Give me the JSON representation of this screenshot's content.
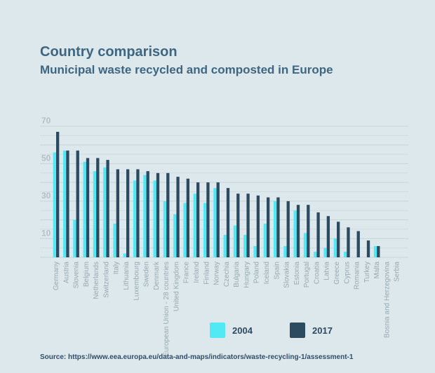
{
  "chart_data": {
    "type": "bar",
    "title": "Country comparison",
    "subtitle": "Municipal waste recycled and composted in Europe",
    "xlabel": "",
    "ylabel": "",
    "ylim": [
      0,
      70
    ],
    "yticks": [
      10,
      30,
      50,
      70
    ],
    "grid": true,
    "legend_position": "bottom",
    "categories": [
      "Germany",
      "Austria",
      "Slovenia",
      "Belgium",
      "Netherlands",
      "Switzerland",
      "Italy",
      "Lithuania",
      "Luxembourg",
      "Sweden",
      "Denmark",
      "European Union - 28 countries",
      "United Kingdom",
      "France",
      "Ireland",
      "Finland",
      "Norway",
      "Czechia",
      "Bulgaria",
      "Hungary",
      "Poland",
      "Iceland",
      "Spain",
      "Slovakia",
      "Estonia",
      "Portugal",
      "Croatia",
      "Latvia",
      "Greece",
      "Cyprus",
      "Romania",
      "Turkey",
      "Malta",
      "Bosnia and Herzegovina",
      "Serbia"
    ],
    "series": [
      {
        "name": "2004",
        "color": "#52e9f5",
        "values": [
          56,
          57,
          20,
          51,
          46,
          48,
          18,
          2,
          41,
          44,
          41,
          30,
          23,
          29,
          34,
          29,
          37,
          12,
          17,
          12,
          6,
          18,
          30,
          6,
          25,
          13,
          3,
          5,
          10,
          3,
          0,
          0,
          6,
          0,
          0
        ]
      },
      {
        "name": "2017",
        "color": "#2c4a60",
        "values": [
          67,
          57,
          57,
          53,
          53,
          52,
          47,
          47,
          47,
          46,
          45,
          45,
          43,
          42,
          40,
          40,
          40,
          37,
          34,
          34,
          33,
          32,
          32,
          30,
          28,
          28,
          24,
          22,
          19,
          16,
          14,
          9,
          6,
          0,
          0
        ]
      }
    ]
  },
  "source": "Source: https://www.eea.europa.eu/data-and-maps/indicators/waste-recycling-1/assessment-1"
}
